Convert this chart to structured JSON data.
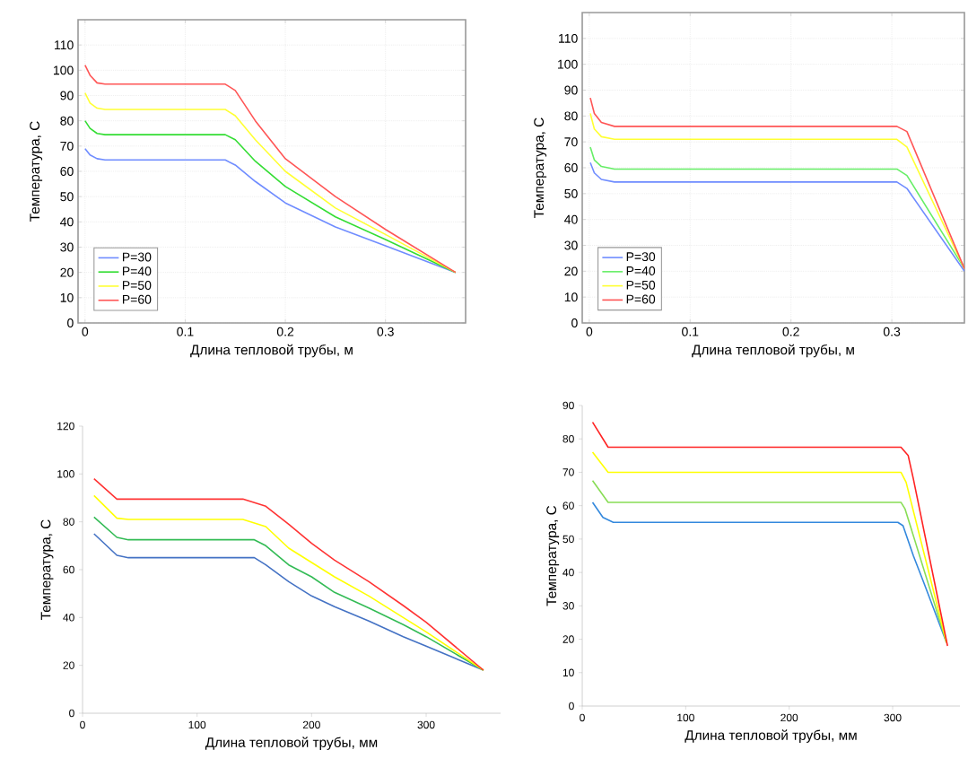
{
  "chart_data": [
    {
      "type": "line",
      "xlabel": "Длина тепловой трубы, м",
      "ylabel": "Температура, С",
      "xlim": [
        -0.007,
        0.38
      ],
      "ylim": [
        0,
        120
      ],
      "xticks": [
        0,
        0.1,
        0.2,
        0.3
      ],
      "yticks": [
        0,
        10,
        20,
        30,
        40,
        50,
        60,
        70,
        80,
        90,
        100,
        110
      ],
      "grid": true,
      "legend": "bottom left",
      "series": [
        {
          "name": "P=30",
          "color": "#6f8cff",
          "x": [
            0,
            0.005,
            0.012,
            0.02,
            0.14,
            0.15,
            0.17,
            0.2,
            0.25,
            0.3,
            0.37
          ],
          "values": [
            69,
            66.5,
            65,
            64.5,
            64.5,
            62.5,
            56,
            47.5,
            38,
            30.5,
            20
          ]
        },
        {
          "name": "P=40",
          "color": "#33dd33",
          "x": [
            0,
            0.005,
            0.012,
            0.02,
            0.14,
            0.15,
            0.17,
            0.2,
            0.25,
            0.3,
            0.37
          ],
          "values": [
            80,
            77,
            75,
            74.5,
            74.5,
            72.5,
            64,
            54,
            42,
            33,
            20
          ]
        },
        {
          "name": "P=50",
          "color": "#ffff33",
          "x": [
            0,
            0.005,
            0.012,
            0.02,
            0.14,
            0.15,
            0.17,
            0.2,
            0.25,
            0.3,
            0.37
          ],
          "values": [
            91,
            87,
            85,
            84.5,
            84.5,
            82,
            72.5,
            60,
            45.5,
            35,
            20
          ]
        },
        {
          "name": "P=60",
          "color": "#ff5555",
          "x": [
            0,
            0.005,
            0.012,
            0.02,
            0.14,
            0.15,
            0.17,
            0.2,
            0.25,
            0.3,
            0.37
          ],
          "values": [
            102,
            98,
            95,
            94.5,
            94.5,
            92,
            80,
            65,
            50,
            37,
            20
          ]
        }
      ]
    },
    {
      "type": "line",
      "xlabel": "Длина тепловой трубы, м",
      "ylabel": "Температура, С",
      "xlim": [
        -0.007,
        0.372
      ],
      "ylim": [
        0,
        120
      ],
      "xticks": [
        0,
        0.1,
        0.2,
        0.3
      ],
      "yticks": [
        0,
        10,
        20,
        30,
        40,
        50,
        60,
        70,
        80,
        90,
        100,
        110
      ],
      "grid": true,
      "legend": "bottom left",
      "series": [
        {
          "name": "P=30",
          "color": "#6f8cff",
          "x": [
            0.001,
            0.005,
            0.012,
            0.025,
            0.305,
            0.315,
            0.372
          ],
          "values": [
            62,
            58,
            55.5,
            54.5,
            54.5,
            52,
            20
          ]
        },
        {
          "name": "P=40",
          "color": "#66ee66",
          "x": [
            0.001,
            0.005,
            0.012,
            0.025,
            0.305,
            0.315,
            0.372
          ],
          "values": [
            68,
            63,
            60.5,
            59.5,
            59.5,
            57,
            21
          ]
        },
        {
          "name": "P=50",
          "color": "#ffff33",
          "x": [
            0.001,
            0.005,
            0.012,
            0.025,
            0.305,
            0.315,
            0.372
          ],
          "values": [
            81,
            75,
            72,
            71,
            71,
            68,
            21
          ]
        },
        {
          "name": "P=60",
          "color": "#ff5555",
          "x": [
            0.001,
            0.005,
            0.012,
            0.025,
            0.305,
            0.315,
            0.372
          ],
          "values": [
            87,
            81,
            77.5,
            76,
            76,
            74,
            21
          ]
        }
      ]
    },
    {
      "type": "line",
      "xlabel": "Длина тепловой трубы, мм",
      "ylabel": "Температура, С",
      "xlim": [
        0,
        365
      ],
      "ylim": [
        0,
        120
      ],
      "xticks": [
        0,
        100,
        200,
        300
      ],
      "yticks": [
        0,
        20,
        40,
        60,
        80,
        100,
        120
      ],
      "series": [
        {
          "color": "#4472c4",
          "x": [
            10,
            30,
            40,
            150,
            160,
            180,
            200,
            220,
            250,
            280,
            300,
            350
          ],
          "values": [
            75,
            66,
            65,
            65,
            62,
            55,
            49,
            44.5,
            38.5,
            32,
            28,
            18
          ]
        },
        {
          "color": "#33bb55",
          "x": [
            10,
            30,
            40,
            150,
            160,
            180,
            200,
            220,
            250,
            280,
            300,
            350
          ],
          "values": [
            82,
            73.5,
            72.5,
            72.5,
            70,
            62,
            57,
            50.5,
            44,
            37,
            32,
            18
          ]
        },
        {
          "color": "#ffff00",
          "x": [
            10,
            30,
            40,
            140,
            160,
            180,
            200,
            220,
            250,
            280,
            300,
            350
          ],
          "values": [
            91,
            81.5,
            81,
            81,
            78,
            69,
            63,
            57,
            49,
            40,
            34,
            18
          ]
        },
        {
          "color": "#ff3333",
          "x": [
            10,
            30,
            140,
            160,
            180,
            200,
            220,
            250,
            280,
            300,
            350
          ],
          "values": [
            98,
            89.5,
            89.5,
            86.5,
            79,
            71,
            64,
            55,
            45,
            38,
            18
          ]
        }
      ]
    },
    {
      "type": "line",
      "xlabel": "Длина тепловой трубы, мм",
      "ylabel": "Температура, С",
      "xlim": [
        0,
        365
      ],
      "ylim": [
        0,
        90
      ],
      "xticks": [
        0,
        100,
        200,
        300
      ],
      "yticks": [
        0,
        10,
        20,
        30,
        40,
        50,
        60,
        70,
        80,
        90
      ],
      "series": [
        {
          "color": "#3388dd",
          "x": [
            10,
            20,
            30,
            305,
            310,
            320,
            330,
            352
          ],
          "values": [
            61,
            56.5,
            55,
            55,
            54,
            45,
            37,
            19
          ]
        },
        {
          "color": "#88dd55",
          "x": [
            10,
            25,
            308,
            312,
            352
          ],
          "values": [
            67.5,
            61,
            61,
            59,
            19
          ]
        },
        {
          "color": "#ffff00",
          "x": [
            10,
            25,
            308,
            313,
            352
          ],
          "values": [
            76,
            70,
            70,
            67,
            19
          ]
        },
        {
          "color": "#ff2222",
          "x": [
            10,
            25,
            308,
            315,
            320,
            353
          ],
          "values": [
            85,
            77.5,
            77.5,
            75,
            68,
            18
          ]
        }
      ]
    }
  ]
}
